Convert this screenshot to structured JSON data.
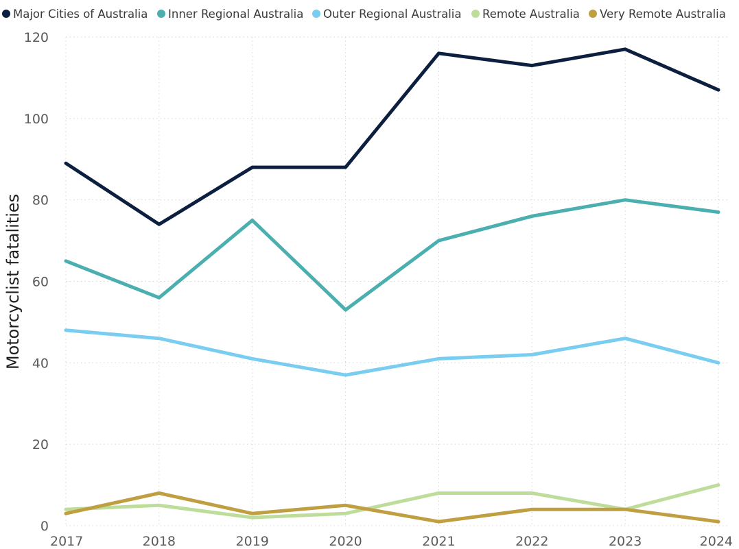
{
  "chart_data": {
    "type": "line",
    "title": "",
    "xlabel": "",
    "ylabel": "Motorcyclist fatalities",
    "categories": [
      "2017",
      "2018",
      "2019",
      "2020",
      "2021",
      "2022",
      "2023",
      "2024"
    ],
    "ylim": [
      0,
      120
    ],
    "yticks": [
      0,
      20,
      40,
      60,
      80,
      100,
      120
    ],
    "grid": true,
    "legend": "top",
    "series": [
      {
        "name": "Major Cities of Australia",
        "color": "#0c1f3f",
        "values": [
          89,
          74,
          88,
          88,
          116,
          113,
          117,
          107
        ]
      },
      {
        "name": "Inner Regional Australia",
        "color": "#4baeaf",
        "values": [
          65,
          56,
          75,
          53,
          70,
          76,
          80,
          77
        ]
      },
      {
        "name": "Outer Regional Australia",
        "color": "#78cdf0",
        "values": [
          48,
          46,
          41,
          37,
          41,
          42,
          46,
          40
        ]
      },
      {
        "name": "Remote Australia",
        "color": "#bfdd9a",
        "values": [
          4,
          5,
          2,
          3,
          8,
          8,
          4,
          10
        ]
      },
      {
        "name": "Very Remote Australia",
        "color": "#bf9f42",
        "values": [
          3,
          8,
          3,
          5,
          1,
          4,
          4,
          1
        ]
      }
    ]
  }
}
